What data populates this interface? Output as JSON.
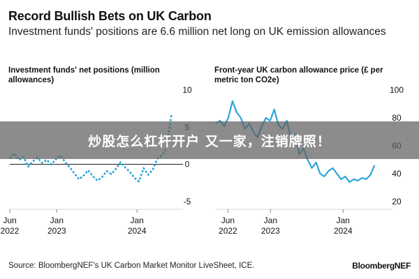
{
  "header": {
    "title": "Record Bullish Bets on UK Carbon",
    "subtitle": "Investment funds' positions are 6.6 million net long on UK emission allowances"
  },
  "overlay": {
    "text": "炒股怎么杠杆开户 又一家，注销牌照！"
  },
  "footer": {
    "source": "Source: BloombergNEF's UK Carbon Market Monitor LiveSheet, ICE.",
    "logo": "BloombergNEF"
  },
  "colors": {
    "line": "#2aa4d8",
    "zero_line": "#111111",
    "background": "#ffffff"
  },
  "chart_data": [
    {
      "type": "line",
      "title": "Investment funds' net positions (million allowances)",
      "x_tick_labels": [
        [
          "Jun",
          "2022"
        ],
        [
          "Jan",
          "2023"
        ],
        [
          "Jan",
          "2024"
        ]
      ],
      "x_tick_dates": [
        "2022-06-01",
        "2023-01-01",
        "2024-01-01"
      ],
      "xlim": [
        "2022-06-01",
        "2024-06-20"
      ],
      "ylim": [
        -5,
        10
      ],
      "y_ticks": [
        10,
        5,
        0,
        -5
      ],
      "y_axis_side": "right",
      "line_style": "dotted",
      "series": [
        {
          "dates": [
            "2022-06-01",
            "2022-06-22",
            "2022-07-13",
            "2022-08-03",
            "2022-08-24",
            "2022-09-14",
            "2022-10-05",
            "2022-10-26",
            "2022-11-16",
            "2022-12-07",
            "2022-12-28",
            "2023-01-18",
            "2023-02-08",
            "2023-03-01",
            "2023-03-22",
            "2023-04-12",
            "2023-05-03",
            "2023-05-24",
            "2023-06-14",
            "2023-07-05",
            "2023-07-26",
            "2023-08-16",
            "2023-09-06",
            "2023-09-27",
            "2023-10-18",
            "2023-11-08",
            "2023-11-29",
            "2023-12-20",
            "2024-01-10",
            "2024-01-31",
            "2024-02-21",
            "2024-03-13",
            "2024-04-03",
            "2024-04-24",
            "2024-05-15",
            "2024-06-05"
          ],
          "values": [
            0.8,
            1.5,
            0.6,
            1.0,
            -0.3,
            0.4,
            0.9,
            0.2,
            0.6,
            0.0,
            0.7,
            1.2,
            0.3,
            -0.4,
            -1.2,
            -2.0,
            -1.5,
            -0.8,
            -1.6,
            -2.2,
            -1.7,
            -0.9,
            -1.3,
            -0.6,
            0.3,
            -0.4,
            -1.0,
            -1.8,
            -2.3,
            -0.5,
            -1.4,
            -0.7,
            0.8,
            1.2,
            2.2,
            6.6
          ]
        }
      ]
    },
    {
      "type": "line",
      "title": "Front-year UK carbon allowance price (£ per metric ton CO2e)",
      "x_tick_labels": [
        [
          "Jun",
          "2022"
        ],
        [
          "Jan",
          "2023"
        ],
        [
          "Jan",
          "2024"
        ]
      ],
      "x_tick_dates": [
        "2022-06-01",
        "2023-01-01",
        "2024-01-01"
      ],
      "xlim": [
        "2022-04-01",
        "2024-06-20"
      ],
      "ylim": [
        20,
        100
      ],
      "y_ticks": [
        100,
        80,
        60,
        40,
        20
      ],
      "y_axis_side": "right",
      "line_style": "solid",
      "series": [
        {
          "dates": [
            "2022-04-01",
            "2022-04-22",
            "2022-05-13",
            "2022-06-03",
            "2022-06-24",
            "2022-07-15",
            "2022-08-05",
            "2022-08-26",
            "2022-09-16",
            "2022-10-07",
            "2022-10-28",
            "2022-11-18",
            "2022-12-09",
            "2022-12-30",
            "2023-01-20",
            "2023-02-10",
            "2023-03-03",
            "2023-03-24",
            "2023-04-14",
            "2023-05-05",
            "2023-05-26",
            "2023-06-16",
            "2023-07-07",
            "2023-07-28",
            "2023-08-18",
            "2023-09-08",
            "2023-09-29",
            "2023-10-20",
            "2023-11-10",
            "2023-12-01",
            "2023-12-22",
            "2024-01-12",
            "2024-02-02",
            "2024-02-23",
            "2024-03-15",
            "2024-04-05",
            "2024-04-26",
            "2024-05-17",
            "2024-06-07"
          ],
          "values": [
            76,
            78,
            74,
            80,
            92,
            84,
            80,
            72,
            76,
            70,
            66,
            74,
            80,
            78,
            86,
            75,
            72,
            78,
            65,
            68,
            54,
            58,
            50,
            44,
            48,
            40,
            38,
            42,
            44,
            40,
            36,
            38,
            34,
            36,
            35,
            37,
            36,
            39,
            46
          ]
        }
      ]
    }
  ]
}
